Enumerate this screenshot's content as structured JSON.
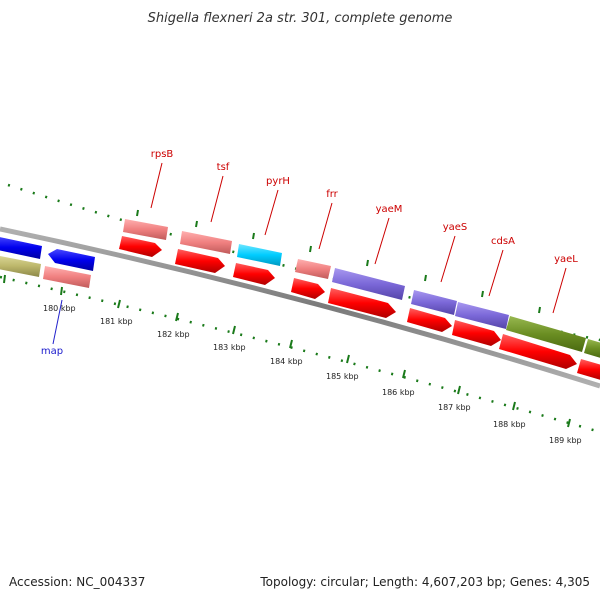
{
  "title": "Shigella flexneri 2a str. 301, complete genome",
  "footer": {
    "accession": "Accession: NC_004337",
    "summary": "Topology: circular; Length: 4,607,203 bp; Genes: 4,305"
  },
  "map_label": "map",
  "gene_labels": [
    "rpsB",
    "tsf",
    "pyrH",
    "frr",
    "yaeM",
    "yaeS",
    "cdsA",
    "yaeL"
  ],
  "tick_labels": [
    "180 kbp",
    "181 kbp",
    "182 kbp",
    "183 kbp",
    "184 kbp",
    "185 kbp",
    "186 kbp",
    "187 kbp",
    "188 kbp",
    "189 kbp"
  ],
  "colors": {
    "backbone": "#8a8a8a",
    "gene_label": "#cc0000",
    "ticks": "#1a7a1a",
    "red_gene": "#ff0000",
    "pink_gene": "#f08080",
    "blue_gene": "#0000ee",
    "cyan_gene": "#00ccff",
    "purple_gene": "#7b68d8",
    "olive_gene": "#6b8e23",
    "khaki_gene": "#bdb76b",
    "map_link": "#2222cc"
  }
}
